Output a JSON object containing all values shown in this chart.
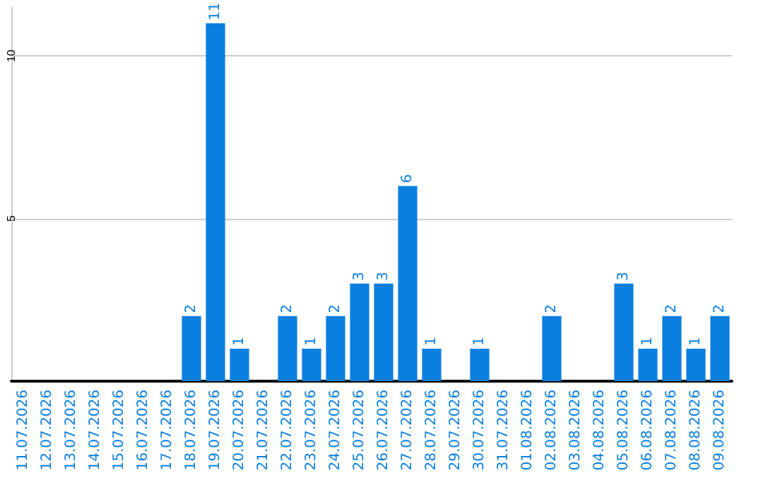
{
  "chart_data": {
    "type": "bar",
    "categories": [
      "11.07.2026",
      "12.07.2026",
      "13.07.2026",
      "14.07.2026",
      "15.07.2026",
      "16.07.2026",
      "17.07.2026",
      "18.07.2026",
      "19.07.2026",
      "20.07.2026",
      "21.07.2026",
      "22.07.2026",
      "23.07.2026",
      "24.07.2026",
      "25.07.2026",
      "26.07.2026",
      "27.07.2026",
      "28.07.2026",
      "29.07.2026",
      "30.07.2026",
      "31.07.2026",
      "01.08.2026",
      "02.08.2026",
      "03.08.2026",
      "04.08.2026",
      "05.08.2026",
      "06.08.2026",
      "07.08.2026",
      "08.08.2026",
      "09.08.2026"
    ],
    "values": [
      0,
      0,
      0,
      0,
      0,
      0,
      0,
      2,
      11,
      1,
      0,
      2,
      1,
      2,
      3,
      3,
      6,
      1,
      0,
      1,
      0,
      0,
      2,
      0,
      0,
      3,
      1,
      2,
      1,
      2
    ],
    "value_labels": [
      null,
      null,
      null,
      null,
      null,
      null,
      null,
      "2",
      "11",
      "1",
      null,
      "2",
      "1",
      "2",
      "3",
      "3",
      "6",
      "1",
      null,
      "1",
      null,
      null,
      "2",
      null,
      null,
      "3",
      "1",
      "2",
      "1",
      "2"
    ],
    "color": "#0a7fe0",
    "ylim": [
      0,
      11.5
    ],
    "yticks": [
      {
        "value": 0,
        "label": null
      },
      5,
      10
    ],
    "grid": "y"
  }
}
